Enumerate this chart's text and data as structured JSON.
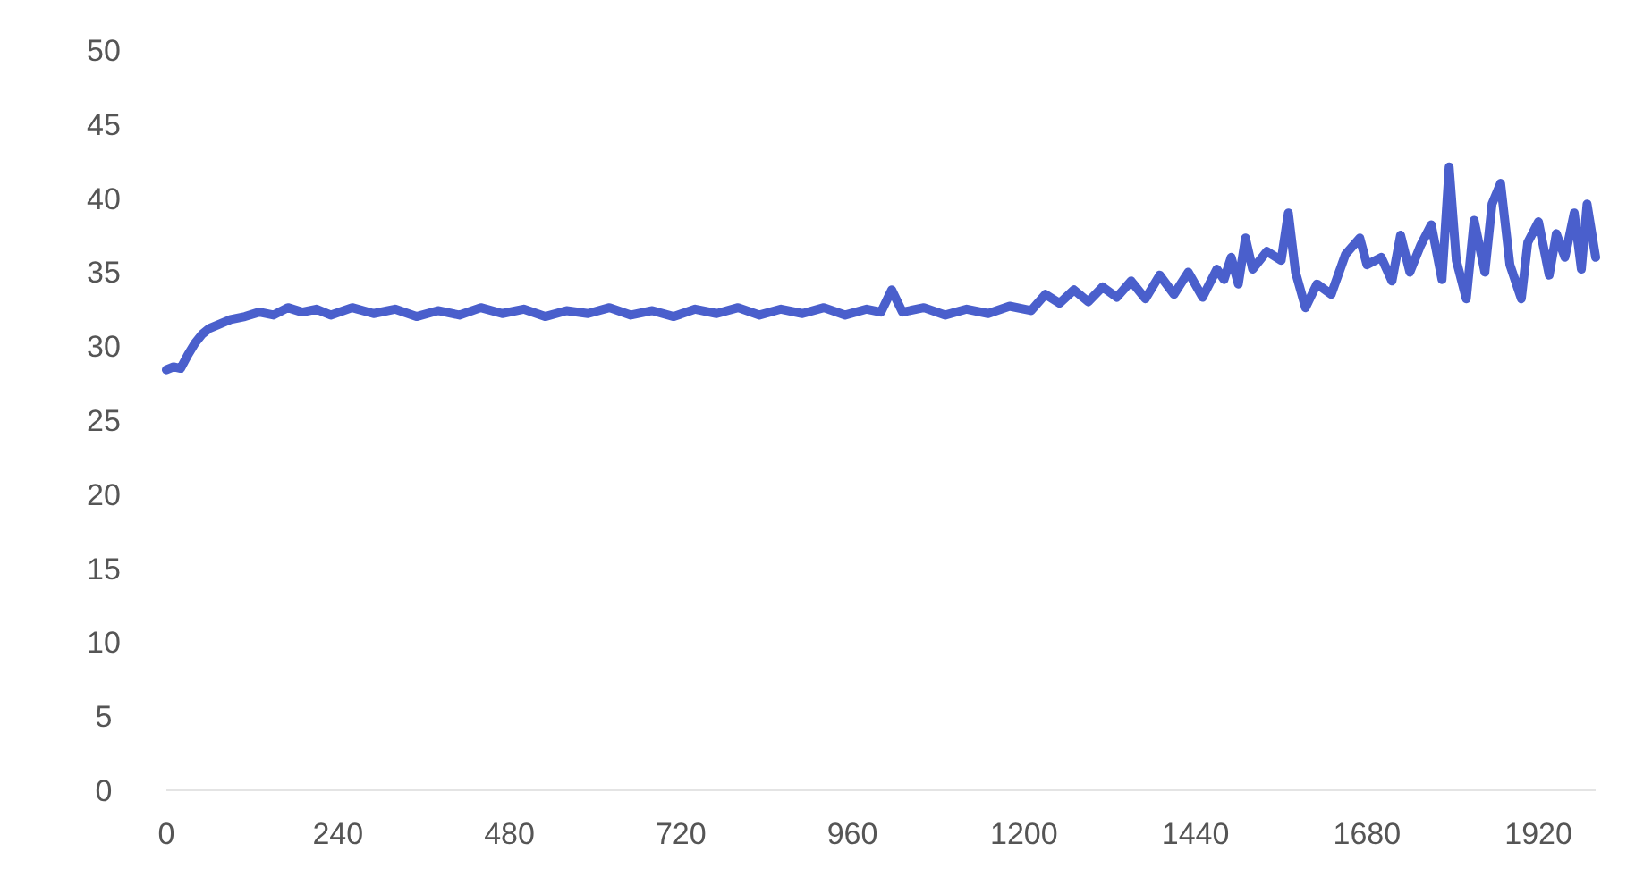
{
  "chart_data": {
    "type": "line",
    "xlim": [
      0,
      2000
    ],
    "ylim": [
      0,
      50
    ],
    "xticks": [
      0,
      240,
      480,
      720,
      960,
      1200,
      1440,
      1680,
      1920
    ],
    "yticks": [
      0,
      5,
      10,
      15,
      20,
      25,
      30,
      35,
      40,
      45,
      50
    ],
    "grid": false,
    "line_style": "solid",
    "marker": "none",
    "series": [
      {
        "color": "#4a5fcc",
        "x": [
          0,
          10,
          20,
          30,
          40,
          50,
          60,
          75,
          90,
          110,
          130,
          150,
          170,
          190,
          210,
          230,
          260,
          290,
          320,
          350,
          380,
          410,
          440,
          470,
          500,
          530,
          560,
          590,
          620,
          650,
          680,
          710,
          740,
          770,
          800,
          830,
          860,
          890,
          920,
          950,
          980,
          1000,
          1015,
          1030,
          1060,
          1090,
          1120,
          1150,
          1180,
          1210,
          1230,
          1250,
          1270,
          1290,
          1310,
          1330,
          1350,
          1370,
          1390,
          1410,
          1430,
          1450,
          1470,
          1480,
          1490,
          1500,
          1510,
          1520,
          1540,
          1560,
          1570,
          1580,
          1594,
          1610,
          1630,
          1650,
          1670,
          1680,
          1700,
          1715,
          1727,
          1740,
          1755,
          1770,
          1785,
          1795,
          1805,
          1819,
          1830,
          1845,
          1855,
          1867,
          1880,
          1896,
          1905,
          1920,
          1935,
          1945,
          1957,
          1970,
          1980,
          1988,
          2000
        ],
        "values": [
          28.4,
          28.6,
          28.5,
          29.4,
          30.2,
          30.8,
          31.2,
          31.5,
          31.8,
          32.0,
          32.3,
          32.1,
          32.6,
          32.3,
          32.5,
          32.1,
          32.6,
          32.2,
          32.5,
          32.0,
          32.4,
          32.1,
          32.6,
          32.2,
          32.5,
          32.0,
          32.4,
          32.2,
          32.6,
          32.1,
          32.4,
          32.0,
          32.5,
          32.2,
          32.6,
          32.1,
          32.5,
          32.2,
          32.6,
          32.1,
          32.5,
          32.3,
          33.8,
          32.3,
          32.6,
          32.1,
          32.5,
          32.2,
          32.7,
          32.4,
          33.5,
          32.9,
          33.8,
          33.0,
          34.0,
          33.3,
          34.4,
          33.2,
          34.8,
          33.5,
          35.0,
          33.3,
          35.2,
          34.5,
          36.0,
          34.2,
          37.3,
          35.2,
          36.4,
          35.8,
          39.0,
          35.0,
          32.6,
          34.2,
          33.5,
          36.2,
          37.3,
          35.5,
          36.0,
          34.4,
          37.5,
          35.0,
          36.8,
          38.2,
          34.5,
          42.1,
          35.8,
          33.2,
          38.5,
          35.0,
          39.6,
          41.0,
          35.5,
          33.2,
          37.0,
          38.4,
          34.8,
          37.6,
          36.0,
          39.0,
          35.2,
          39.6,
          36.0
        ]
      }
    ]
  }
}
